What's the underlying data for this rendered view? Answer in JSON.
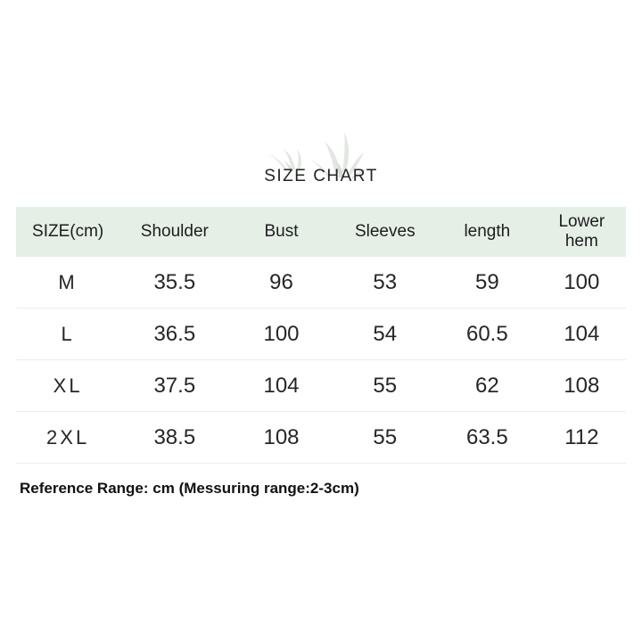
{
  "chart_data": {
    "type": "table",
    "title": "SIZE CHART",
    "columns": [
      "SIZE(cm)",
      "Shoulder",
      "Bust",
      "Sleeves",
      "length",
      "Lower hem"
    ],
    "rows": [
      [
        "M",
        "35.5",
        "96",
        "53",
        "59",
        "100"
      ],
      [
        "L",
        "36.5",
        "100",
        "54",
        "60.5",
        "104"
      ],
      [
        "XL",
        "37.5",
        "104",
        "55",
        "62",
        "108"
      ],
      [
        "2XL",
        "38.5",
        "108",
        "55",
        "63.5",
        "112"
      ]
    ],
    "unit": "cm",
    "note": "Reference Range: cm (Messuring range:2-3cm)"
  },
  "colors": {
    "header_bg": "#e5efe6",
    "divider": "#ececec",
    "text": "#222222",
    "leaf_light": "#e2e7e2",
    "leaf_dark": "#d7dcd7"
  },
  "decoration": "leaf-sprigs"
}
